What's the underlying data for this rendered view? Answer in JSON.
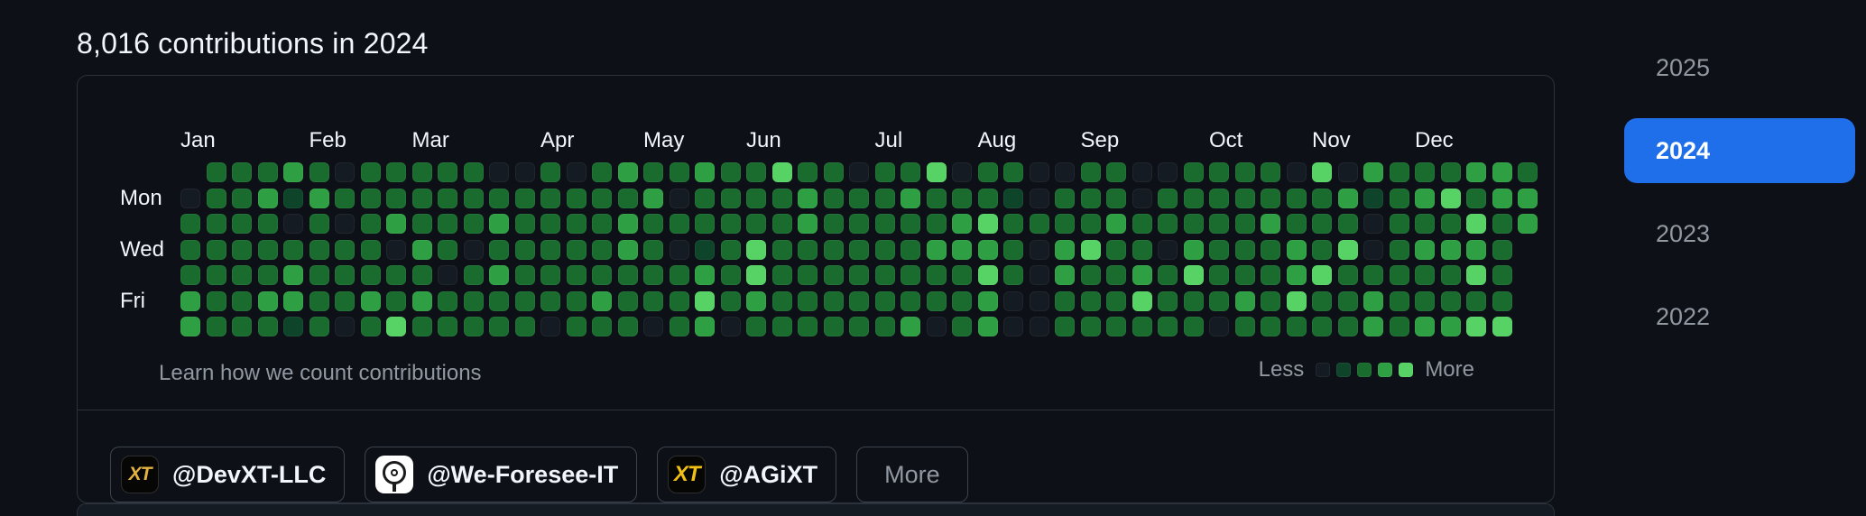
{
  "header": {
    "title": "8,016 contributions in 2024"
  },
  "graph": {
    "months": [
      {
        "label": "Jan",
        "week": 1
      },
      {
        "label": "Feb",
        "week": 6
      },
      {
        "label": "Mar",
        "week": 10
      },
      {
        "label": "Apr",
        "week": 15
      },
      {
        "label": "May",
        "week": 19
      },
      {
        "label": "Jun",
        "week": 23
      },
      {
        "label": "Jul",
        "week": 28
      },
      {
        "label": "Aug",
        "week": 32
      },
      {
        "label": "Sep",
        "week": 36
      },
      {
        "label": "Oct",
        "week": 41
      },
      {
        "label": "Nov",
        "week": 45
      },
      {
        "label": "Dec",
        "week": 49
      }
    ],
    "day_labels": [
      {
        "label": "Mon",
        "row": 1
      },
      {
        "label": "Wed",
        "row": 3
      },
      {
        "label": "Fri",
        "row": 5
      }
    ],
    "weeks": [
      "x022233",
      "2222222",
      "2222222",
      "2322232",
      "3102331",
      "2322222",
      "0202220",
      "2222232",
      "2230224",
      "2223232",
      "2222022",
      "2220222",
      "0232322",
      "0222222",
      "2222220",
      "0222222",
      "2222232",
      "3233222",
      "2322220",
      "2020222",
      "3221343",
      "2222220",
      "2224432",
      "4222222",
      "2332222",
      "2222222",
      "0222222",
      "2222222",
      "2322223",
      "4223220",
      "0233222",
      "2243433",
      "2122200",
      "0020000",
      "0223322",
      "2224222",
      "2232222",
      "0022342",
      "0220222",
      "2223422",
      "2222220",
      "2222232",
      "2232222",
      "0223342",
      "4222422",
      "0324222",
      "3100233",
      "2222222",
      "2323223",
      "2423223",
      "3243424",
      "3322224",
      "233xxxx"
    ],
    "level_colors": [
      "#151b23",
      "#0e4429",
      "#196c2e",
      "#2ea043",
      "#56d364"
    ],
    "legend": {
      "less_label": "Less",
      "more_label": "More"
    },
    "footer_link": "Learn how we count contributions"
  },
  "years": [
    {
      "label": "2025",
      "selected": false
    },
    {
      "label": "2024",
      "selected": true
    },
    {
      "label": "2023",
      "selected": false
    },
    {
      "label": "2022",
      "selected": false
    }
  ],
  "organizations": [
    {
      "label": "@DevXT-LLC",
      "avatar": "dark-gold",
      "avatar_text": "XT"
    },
    {
      "label": "@We-Foresee-IT",
      "avatar": "white-emblem",
      "avatar_text": ""
    },
    {
      "label": "@AGiXT",
      "avatar": "dark-gold gold-big",
      "avatar_text": "XT"
    }
  ],
  "more_button": {
    "label": "More"
  },
  "colors": {
    "accent_blue": "#1f6feb",
    "background": "#0d1117",
    "border": "#2b323b"
  }
}
